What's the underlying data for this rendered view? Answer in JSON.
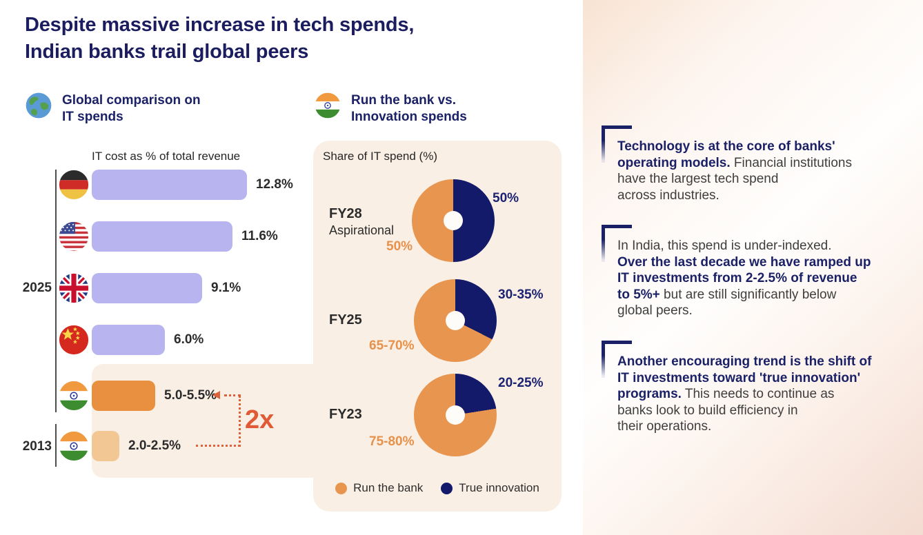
{
  "colors": {
    "navy": "#1b2166",
    "donut_navy": "#141a6a",
    "orange": "#e8954f",
    "bar_lavender": "#b7b4f0",
    "bar_orange": "#e8903f",
    "bar_light_orange": "#f2c794",
    "accent_2x": "#e05a35",
    "panel_cream": "#f9efe4"
  },
  "title": {
    "line1": "Despite massive increase in tech spends,",
    "line2": "Indian banks trail global peers"
  },
  "left_section": {
    "icon": "globe-icon",
    "header_line1": "Global comparison on",
    "header_line2": "IT spends",
    "chart_title": "IT cost as % of total revenue",
    "year_2025": "2025",
    "year_2013": "2013",
    "rows": [
      {
        "flag": "germany-flag-icon",
        "label": "12.8%",
        "color": "#b7b4f0"
      },
      {
        "flag": "usa-flag-icon",
        "label": "11.6%",
        "color": "#b7b4f0"
      },
      {
        "flag": "uk-flag-icon",
        "label": "9.1%",
        "color": "#b7b4f0"
      },
      {
        "flag": "china-flag-icon",
        "label": "6.0%",
        "color": "#b7b4f0"
      },
      {
        "flag": "india-flag-icon",
        "label": "5.0-5.5%",
        "color": "#e8903f"
      },
      {
        "flag": "india-flag-icon",
        "label": "2.0-2.5%",
        "color": "#f2c794"
      }
    ],
    "annotation": "2x"
  },
  "mid_section": {
    "icon": "india-flag-icon",
    "header_line1": "Run the bank vs.",
    "header_line2": "Innovation spends",
    "chart_title": "Share of IT spend (%)",
    "donuts": [
      {
        "label": "FY28",
        "sublabel": "Aspirational",
        "innovation_label": "50%",
        "run_label": "50%"
      },
      {
        "label": "FY25",
        "sublabel": "",
        "innovation_label": "30-35%",
        "run_label": "65-70%"
      },
      {
        "label": "FY23",
        "sublabel": "",
        "innovation_label": "20-25%",
        "run_label": "75-80%"
      }
    ],
    "legend": [
      {
        "name": "Run the bank"
      },
      {
        "name": "True innovation"
      }
    ]
  },
  "right_panel": {
    "blocks": [
      {
        "parts": [
          {
            "b": 1,
            "t": "Technology is at the core of banks'\noperating models."
          },
          {
            "b": 0,
            "t": " Financial institutions\nhave the largest tech spend\nacross industries."
          }
        ]
      },
      {
        "parts": [
          {
            "b": 0,
            "t": "In India, this spend is under-indexed.\n"
          },
          {
            "b": 1,
            "t": "Over the last decade we have ramped up\nIT investments from 2-2.5% of revenue\nto 5%+"
          },
          {
            "b": 0,
            "t": " but are still significantly below\nglobal peers."
          }
        ]
      },
      {
        "parts": [
          {
            "b": 1,
            "t": "Another encouraging trend is the shift of\nIT investments toward 'true innovation'\nprograms."
          },
          {
            "b": 0,
            "t": " This needs to continue as\nbanks look to build efficiency in\ntheir operations."
          }
        ]
      }
    ]
  },
  "chart_data": [
    {
      "type": "bar",
      "orientation": "horizontal",
      "title": "IT cost as % of total revenue",
      "categories": [
        "Germany 2025",
        "USA 2025",
        "UK 2025",
        "China 2025",
        "India 2025",
        "India 2013"
      ],
      "values": [
        12.8,
        11.6,
        9.1,
        6.0,
        5.25,
        2.25
      ],
      "value_labels": [
        "12.8%",
        "11.6%",
        "9.1%",
        "6.0%",
        "5.0-5.5%",
        "2.0-2.5%"
      ],
      "xlim": [
        0,
        14
      ],
      "grid": false,
      "annotation": "2x increase from India 2013 to India 2025"
    },
    {
      "type": "pie",
      "title": "Share of IT spend (%)",
      "categories": [
        "FY28 Aspirational",
        "FY25",
        "FY23"
      ],
      "series": [
        {
          "name": "Run the bank",
          "values": [
            50,
            67.5,
            77.5
          ],
          "labels": [
            "50%",
            "65-70%",
            "75-80%"
          ]
        },
        {
          "name": "True innovation",
          "values": [
            50,
            32.5,
            22.5
          ],
          "labels": [
            "50%",
            "30-35%",
            "20-25%"
          ]
        }
      ],
      "legend_position": "bottom"
    }
  ]
}
